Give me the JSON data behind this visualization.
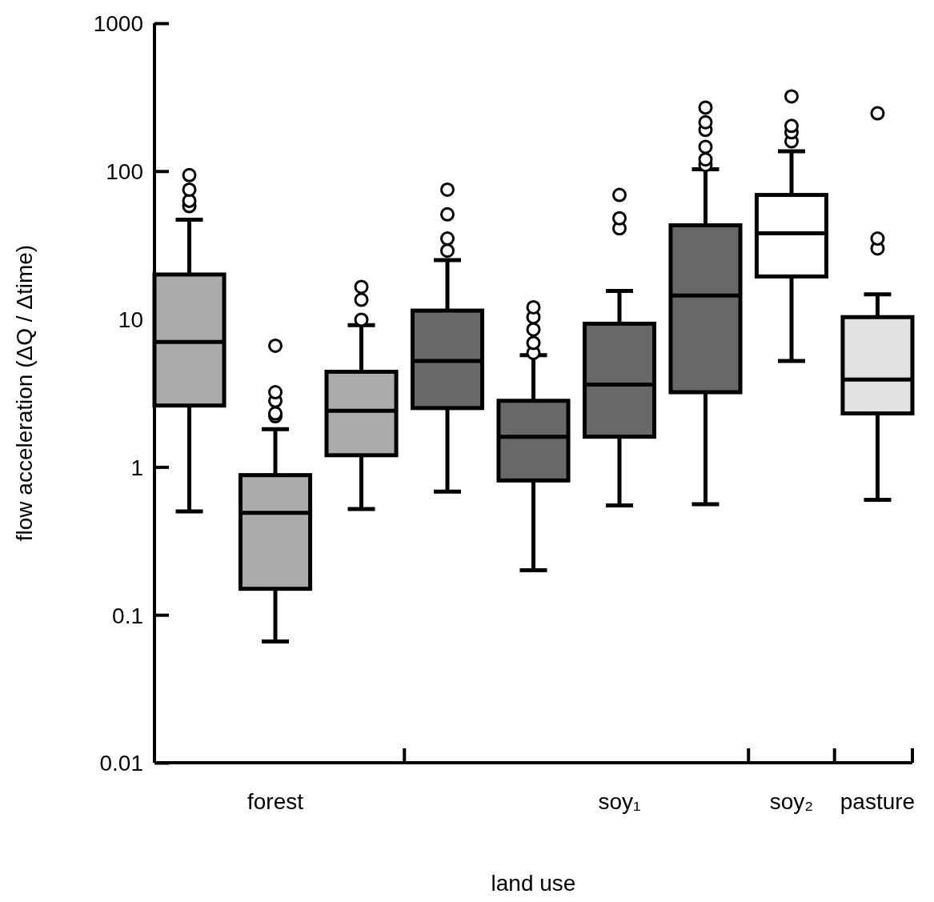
{
  "chart_data": {
    "type": "box",
    "xlabel": "land use",
    "ylabel": "flow acceleration (ΔQ / Δtime)",
    "categories": [
      null,
      "forest",
      null,
      null,
      null,
      "soy₁",
      null,
      "soy₂",
      "pasture"
    ],
    "colors": [
      "#ababab",
      "#ababab",
      "#ababab",
      "#686868",
      "#686868",
      "#686868",
      "#686868",
      "#ffffff",
      "#e1e1e1"
    ],
    "log": true,
    "ylim": [
      0.01,
      1000
    ],
    "yticks": [
      0.01,
      0.1,
      1,
      10,
      100,
      1000
    ],
    "boxes": [
      {
        "low": 0.5,
        "q1": 2.6,
        "median": 7,
        "q3": 20,
        "high": 47,
        "outliers": [
          58,
          63,
          75,
          94
        ]
      },
      {
        "low": 0.066,
        "q1": 0.15,
        "median": 0.49,
        "q3": 0.88,
        "high": 1.8,
        "outliers": [
          2.2,
          2.3,
          2.8,
          3.2,
          6.6
        ]
      },
      {
        "low": 0.52,
        "q1": 1.2,
        "median": 2.4,
        "q3": 4.4,
        "high": 9.1,
        "outliers": [
          9.9,
          13.5,
          16.5
        ]
      },
      {
        "low": 0.68,
        "q1": 2.5,
        "median": 5.2,
        "q3": 11.4,
        "high": 25,
        "outliers": [
          29,
          35,
          51,
          75
        ]
      },
      {
        "low": 0.2,
        "q1": 0.81,
        "median": 1.6,
        "q3": 2.8,
        "high": 5.7,
        "outliers": [
          5.9,
          6.9,
          8.5,
          10.3,
          12
        ]
      },
      {
        "low": 0.55,
        "q1": 1.6,
        "median": 3.6,
        "q3": 9.3,
        "high": 15.5,
        "outliers": [
          41,
          48,
          69
        ]
      },
      {
        "low": 0.56,
        "q1": 3.2,
        "median": 14.4,
        "q3": 43,
        "high": 103,
        "outliers": [
          110,
          120,
          146,
          190,
          214,
          269
        ]
      },
      {
        "low": 5.2,
        "q1": 19.4,
        "median": 38,
        "q3": 69,
        "high": 136,
        "outliers": [
          159,
          183,
          202,
          320
        ]
      },
      {
        "low": 0.6,
        "q1": 2.3,
        "median": 3.9,
        "q3": 10.3,
        "high": 14.7,
        "outliers": [
          30,
          35,
          246
        ]
      }
    ]
  }
}
